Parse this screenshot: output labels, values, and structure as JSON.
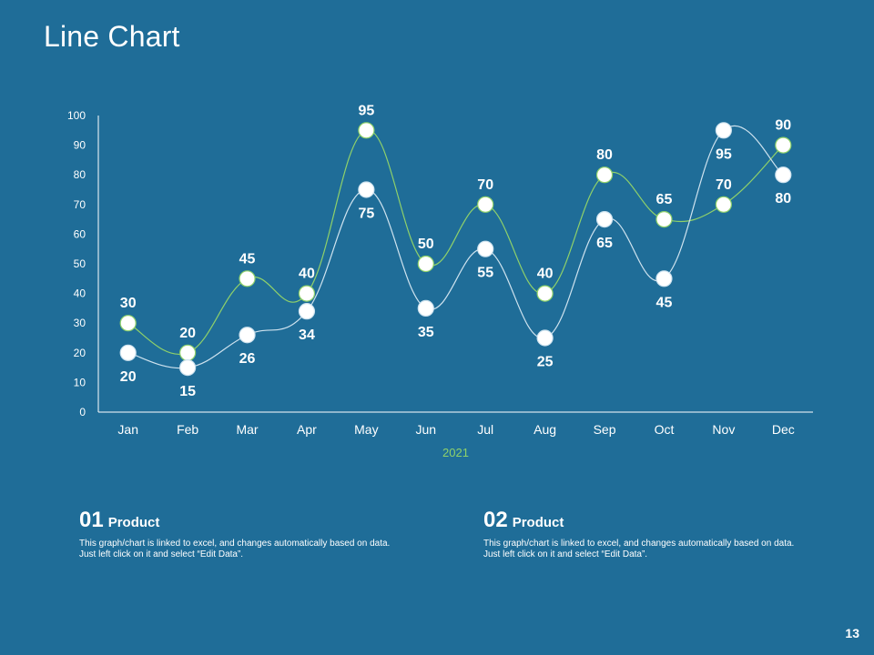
{
  "slide": {
    "title": "Line Chart",
    "page_number": "13"
  },
  "cards": [
    {
      "number": "01",
      "name": "Product",
      "description": "This graph/chart is linked to excel, and changes automatically based on data. Just left click on it and select “Edit Data”."
    },
    {
      "number": "02",
      "name": "Product",
      "description": "This graph/chart is linked to excel, and changes automatically based on data. Just left click on it and select “Edit Data”."
    }
  ],
  "chart_data": {
    "type": "line",
    "title": "",
    "xlabel": "2021",
    "ylabel": "",
    "categories": [
      "Jan",
      "Feb",
      "Mar",
      "Apr",
      "May",
      "Jun",
      "Jul",
      "Aug",
      "Sep",
      "Oct",
      "Nov",
      "Dec"
    ],
    "ylim": [
      0,
      100
    ],
    "yticks": [
      0,
      10,
      20,
      30,
      40,
      50,
      60,
      70,
      80,
      90,
      100
    ],
    "grid": false,
    "legend": "none",
    "series": [
      {
        "values": [
          30,
          20,
          45,
          40,
          95,
          50,
          70,
          40,
          80,
          65,
          70,
          90
        ],
        "color": "#8fd16a",
        "label_position": "above"
      },
      {
        "values": [
          20,
          15,
          26,
          34,
          75,
          35,
          55,
          25,
          65,
          45,
          95,
          80
        ],
        "color": "#cfe3ef",
        "label_position": "below"
      }
    ],
    "axis_color": "#ffffff",
    "xlabel_color": "#8fd16a"
  }
}
